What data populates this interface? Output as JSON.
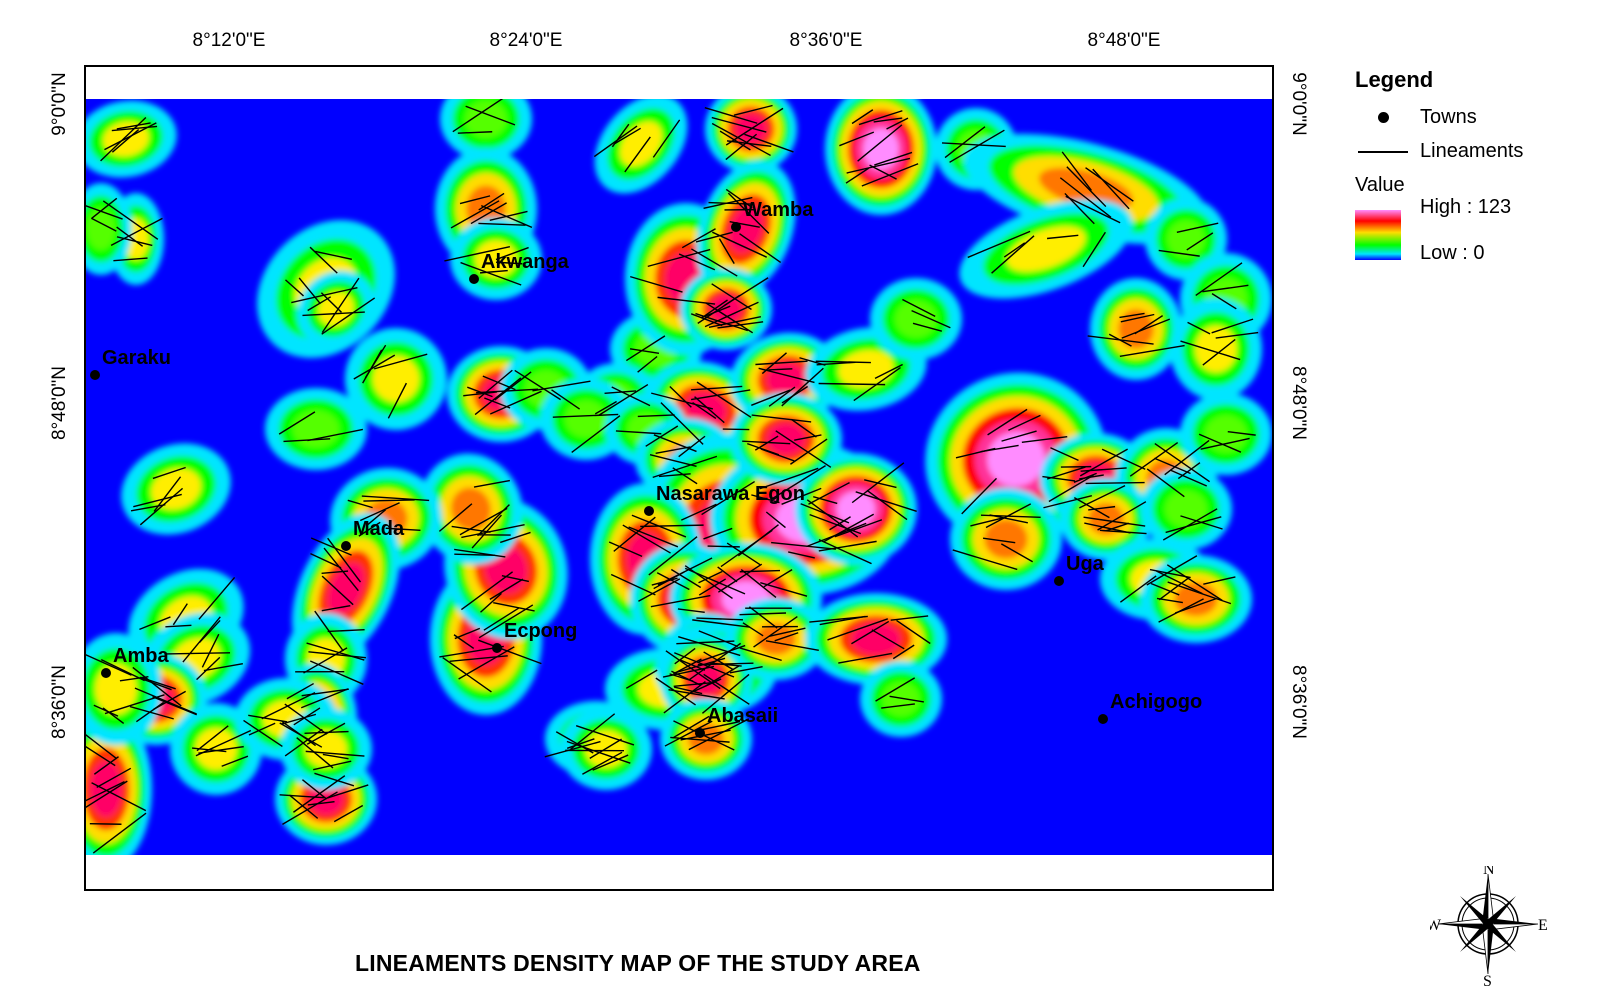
{
  "map": {
    "title": "LINEAMENTS DENSITY MAP OF THE STUDY AREA",
    "longitude_ticks": [
      "8°12'0\"E",
      "8°24'0\"E",
      "8°36'0\"E",
      "8°48'0\"E"
    ],
    "latitude_ticks": [
      "9°0'0\"N",
      "8°48'0\"N",
      "8°36'0\"N"
    ],
    "towns": [
      {
        "name": "Wamba"
      },
      {
        "name": "Akwanga"
      },
      {
        "name": "Garaku"
      },
      {
        "name": "Nasarawa Egon"
      },
      {
        "name": "Mada"
      },
      {
        "name": "Uga"
      },
      {
        "name": "Ecpong"
      },
      {
        "name": "Amba"
      },
      {
        "name": "Abasaii"
      },
      {
        "name": "Achigogo"
      }
    ]
  },
  "legend": {
    "title": "Legend",
    "towns_label": "Towns",
    "lineaments_label": "Lineaments",
    "value_label": "Value",
    "high_label": "High : 123",
    "low_label": "Low : 0",
    "ramp_colors": [
      "#ff8cff",
      "#ff0000",
      "#ffdd00",
      "#00ff00",
      "#00e5ff",
      "#0000ff"
    ]
  },
  "compass": {
    "n": "N",
    "s": "S",
    "e": "E",
    "w": "W"
  }
}
